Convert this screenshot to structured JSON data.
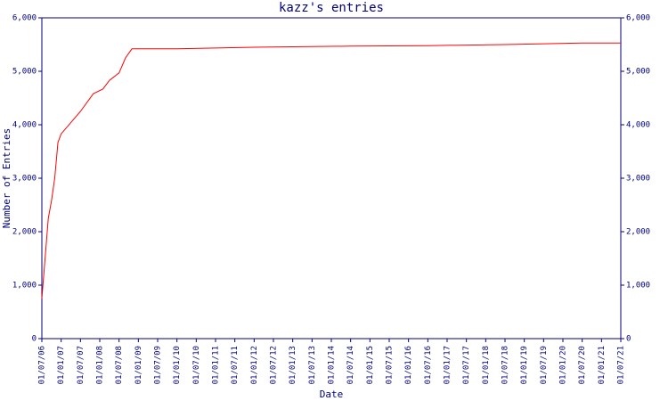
{
  "chart_data": {
    "type": "line",
    "title": "kazz's entries",
    "x_label": "Date",
    "y_label": "Number of Entries",
    "x": [
      "01/07/06",
      "01/09/06",
      "01/10/06",
      "01/11/06",
      "01/12/06",
      "01/01/07",
      "01/07/07",
      "01/11/07",
      "01/02/08",
      "01/04/08",
      "01/07/08",
      "01/09/08",
      "01/11/08",
      "01/01/10",
      "01/01/12",
      "01/07/14",
      "01/07/16",
      "01/07/18",
      "01/07/20",
      "01/07/21"
    ],
    "series": [
      {
        "name": "kazz",
        "color": "#ff0000",
        "values": [
          750,
          2250,
          2580,
          3000,
          3670,
          3830,
          4250,
          4580,
          4670,
          4830,
          4970,
          5250,
          5420,
          5420,
          5450,
          5470,
          5480,
          5500,
          5530,
          5530
        ]
      }
    ],
    "xlim": [
      "01/07/06",
      "01/07/21"
    ],
    "xticks": [
      "01/07/06",
      "01/01/07",
      "01/07/07",
      "01/01/08",
      "01/07/08",
      "01/01/09",
      "01/07/09",
      "01/01/10",
      "01/07/10",
      "01/01/11",
      "01/07/11",
      "01/01/12",
      "01/07/12",
      "01/01/13",
      "01/07/13",
      "01/01/14",
      "01/07/14",
      "01/01/15",
      "01/07/15",
      "01/01/16",
      "01/07/16",
      "01/01/17",
      "01/07/17",
      "01/01/18",
      "01/07/18",
      "01/01/19",
      "01/07/19",
      "01/01/20",
      "01/07/20",
      "01/01/21",
      "01/07/21"
    ],
    "ylim": [
      0,
      6000
    ],
    "yticks": [
      0,
      {
        "value": 1000,
        "label": "1,000"
      },
      {
        "value": 2000,
        "label": "2,000"
      },
      {
        "value": 3000,
        "label": "3,000"
      },
      {
        "value": 4000,
        "label": "4,000"
      },
      {
        "value": 5000,
        "label": "5,000"
      },
      {
        "value": 6000,
        "label": "6,000"
      }
    ],
    "axis_color": "#000080",
    "right_axis": true
  }
}
